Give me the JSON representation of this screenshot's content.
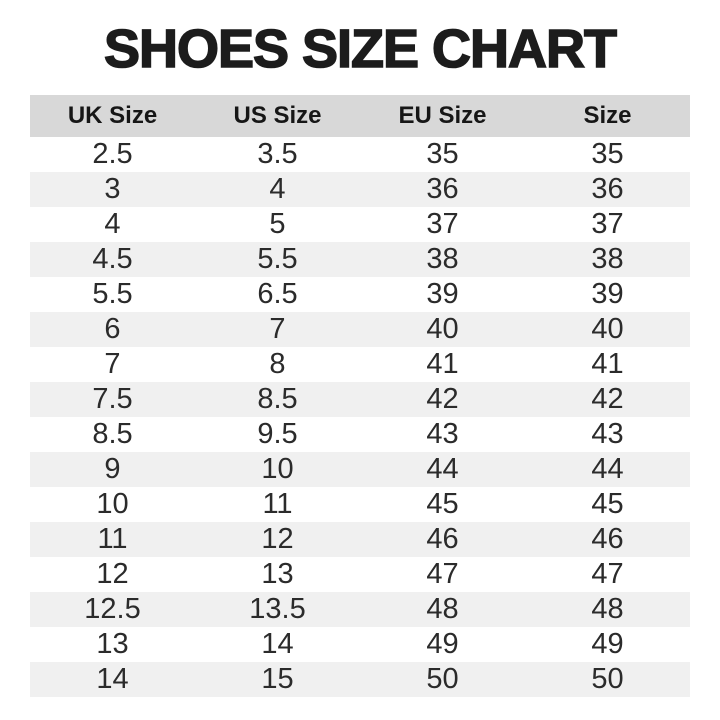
{
  "title": "SHOES SIZE CHART",
  "colors": {
    "header_bg": "#d8d8d8",
    "stripe_bg": "#f0f0f0",
    "title_text": "#1c1c1c",
    "body_text": "#2b2b2b"
  },
  "chart_data": {
    "type": "table",
    "title": "SHOES SIZE CHART",
    "columns": [
      "UK Size",
      "US Size",
      "EU Size",
      "Size"
    ],
    "rows": [
      [
        "2.5",
        "3.5",
        "35",
        "35"
      ],
      [
        "3",
        "4",
        "36",
        "36"
      ],
      [
        "4",
        "5",
        "37",
        "37"
      ],
      [
        "4.5",
        "5.5",
        "38",
        "38"
      ],
      [
        "5.5",
        "6.5",
        "39",
        "39"
      ],
      [
        "6",
        "7",
        "40",
        "40"
      ],
      [
        "7",
        "8",
        "41",
        "41"
      ],
      [
        "7.5",
        "8.5",
        "42",
        "42"
      ],
      [
        "8.5",
        "9.5",
        "43",
        "43"
      ],
      [
        "9",
        "10",
        "44",
        "44"
      ],
      [
        "10",
        "11",
        "45",
        "45"
      ],
      [
        "11",
        "12",
        "46",
        "46"
      ],
      [
        "12",
        "13",
        "47",
        "47"
      ],
      [
        "12.5",
        "13.5",
        "48",
        "48"
      ],
      [
        "13",
        "14",
        "49",
        "49"
      ],
      [
        "14",
        "15",
        "50",
        "50"
      ]
    ]
  }
}
